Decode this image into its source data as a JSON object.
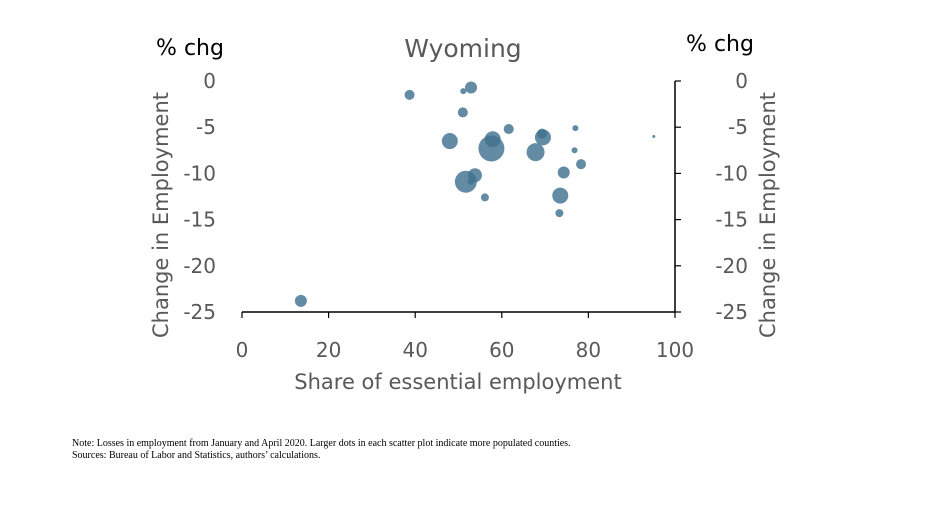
{
  "chart_data": {
    "type": "scatter",
    "title": "Wyoming",
    "xlabel": "Share of essential employment",
    "ylabel_left": "Change in Employment",
    "ylabel_right": "Change in Employment",
    "y_unit_left": "% chg",
    "y_unit_right": "% chg",
    "xlim": [
      0,
      100
    ],
    "ylim": [
      -25,
      0
    ],
    "x_ticks": [
      0,
      20,
      40,
      60,
      80,
      100
    ],
    "y_ticks": [
      0,
      -5,
      -10,
      -15,
      -20,
      -25
    ],
    "grid": false,
    "legend": "none",
    "color": "#41718F",
    "size_meaning": "county population (relative)",
    "points": [
      {
        "x": 13.6,
        "y": -23.8,
        "size": 6
      },
      {
        "x": 38.7,
        "y": -1.5,
        "size": 5
      },
      {
        "x": 51.1,
        "y": -1.1,
        "size": 3
      },
      {
        "x": 52.9,
        "y": -0.7,
        "size": 6
      },
      {
        "x": 51.0,
        "y": -3.4,
        "size": 5
      },
      {
        "x": 48.0,
        "y": -6.5,
        "size": 8
      },
      {
        "x": 57.9,
        "y": -6.3,
        "size": 8
      },
      {
        "x": 57.6,
        "y": -7.3,
        "size": 13
      },
      {
        "x": 61.6,
        "y": -5.2,
        "size": 5
      },
      {
        "x": 69.3,
        "y": -5.7,
        "size": 5
      },
      {
        "x": 69.5,
        "y": -6.1,
        "size": 8
      },
      {
        "x": 67.8,
        "y": -7.7,
        "size": 9
      },
      {
        "x": 51.7,
        "y": -10.9,
        "size": 11
      },
      {
        "x": 53.8,
        "y": -10.2,
        "size": 7
      },
      {
        "x": 52.8,
        "y": -10.9,
        "size": 3
      },
      {
        "x": 56.1,
        "y": -12.6,
        "size": 4
      },
      {
        "x": 73.5,
        "y": -12.4,
        "size": 8
      },
      {
        "x": 74.3,
        "y": -9.9,
        "size": 6
      },
      {
        "x": 73.3,
        "y": -14.3,
        "size": 4
      },
      {
        "x": 77.0,
        "y": -5.1,
        "size": 3
      },
      {
        "x": 76.8,
        "y": -7.5,
        "size": 3
      },
      {
        "x": 78.3,
        "y": -9.0,
        "size": 5
      },
      {
        "x": 95.1,
        "y": -6.0,
        "size": 1.5
      }
    ]
  },
  "notes": {
    "note": "Note: Losses in employment from January and April 2020. Larger dots in each scatter plot indicate more populated counties.",
    "sources": "Sources: Bureau of Labor and Statistics, authors’ calculations."
  }
}
